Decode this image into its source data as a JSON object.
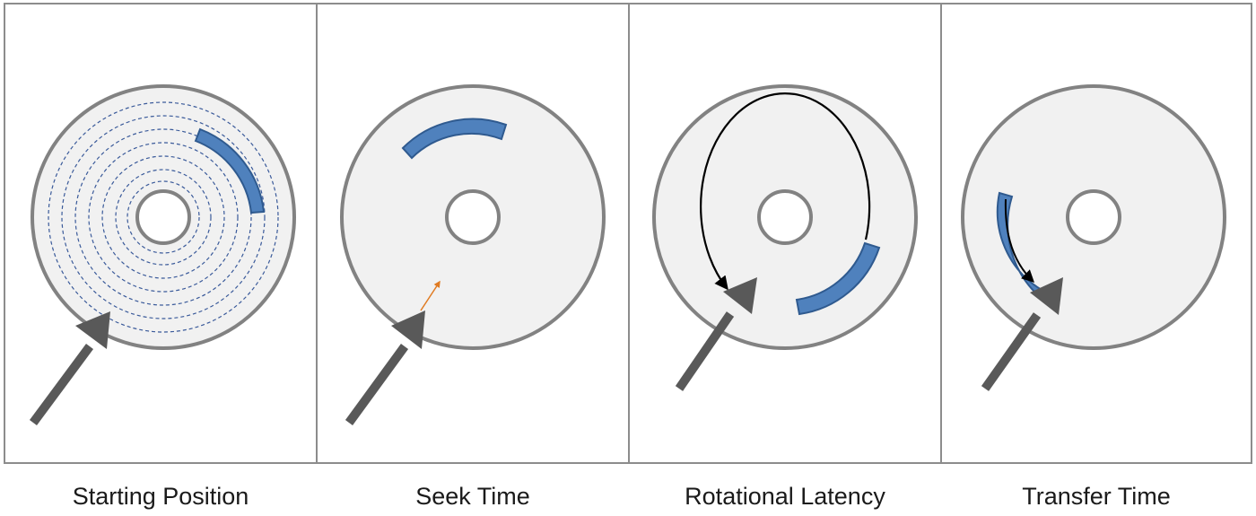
{
  "panels": [
    {
      "id": "starting-position",
      "label": "Starting Position"
    },
    {
      "id": "seek-time",
      "label": "Seek Time"
    },
    {
      "id": "rotational-latency",
      "label": "Rotational Latency"
    },
    {
      "id": "transfer-time",
      "label": "Transfer Time"
    }
  ],
  "colors": {
    "platter_fill": "#f1f1f1",
    "platter_stroke": "#828282",
    "panel_border": "#8c8c8c",
    "sector_fill": "#4f81bd",
    "sector_stroke": "#2f5a8f",
    "track_dash": "#3a5a9a",
    "arm": "#595959",
    "seek_arrow": "#e07b22",
    "rotation_arrow": "#000000"
  }
}
